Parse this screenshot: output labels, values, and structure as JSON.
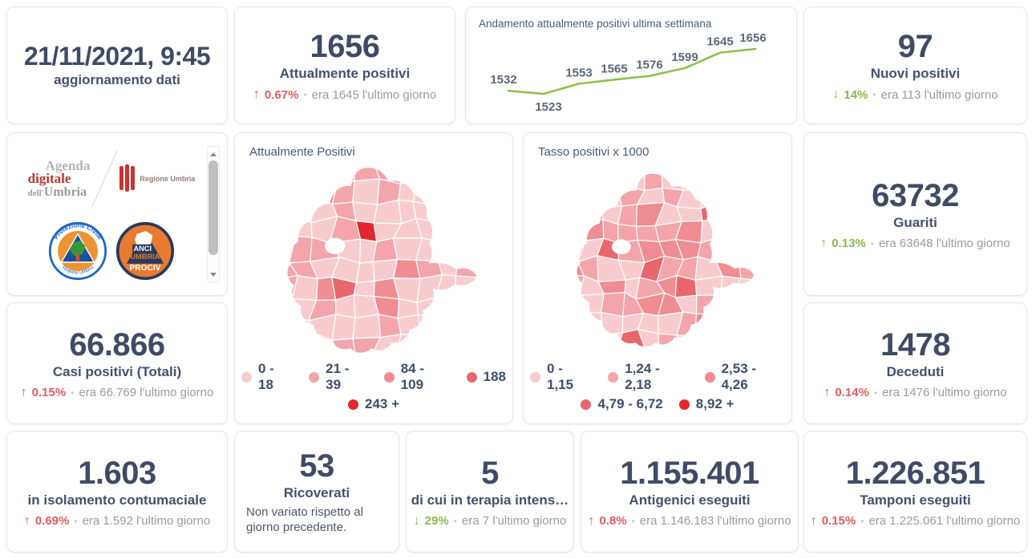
{
  "ui": {
    "separator": "•"
  },
  "colors": {
    "number": "#3f4b66",
    "label": "#44516b",
    "muted_text": "#9b9b9b",
    "trend_red": "#e25c5c",
    "trend_green": "#86bb4a",
    "chart_line": "#8bc34a",
    "card_border": "#e5e5e8"
  },
  "cards": {
    "updated": {
      "value": "21/11/2021, 9:45",
      "label": "aggiornamento dati"
    },
    "attualmente_positivi": {
      "value": "1656",
      "label": "Attualmente positivi",
      "arrow": "↑",
      "delta": "0.67%",
      "trend": "red",
      "prev": "era 1645 l'ultimo giorno"
    },
    "nuovi_positivi": {
      "value": "97",
      "label": "Nuovi positivi",
      "arrow": "↓",
      "delta": "14%",
      "trend": "green",
      "prev": "era 113 l'ultimo giorno"
    },
    "guariti": {
      "value": "63732",
      "label": "Guariti",
      "arrow": "↑",
      "delta": "0.13%",
      "trend": "green",
      "prev": "era 63648 l'ultimo giorno"
    },
    "casi_totali": {
      "value": "66.866",
      "label": "Casi positivi (Totali)",
      "arrow": "↑",
      "delta": "0.15%",
      "trend": "red",
      "prev": "era 66.769 l'ultimo giorno"
    },
    "deceduti": {
      "value": "1478",
      "label": "Deceduti",
      "arrow": "↑",
      "delta": "0.14%",
      "trend": "red",
      "prev": "era 1476 l'ultimo giorno"
    },
    "isolamento": {
      "value": "1.603",
      "label": "in isolamento contumaciale",
      "arrow": "↑",
      "delta": "0.69%",
      "trend": "red",
      "prev": "era 1.592 l'ultimo giorno"
    },
    "ricoverati": {
      "value": "53",
      "label": "Ricoverati",
      "note": "Non variato rispetto al giorno precedente."
    },
    "terapia_intensiva": {
      "value": "5",
      "label": "di cui in terapia intens…",
      "arrow": "↓",
      "delta": "29%",
      "trend": "green",
      "prev": "era 7 l'ultimo giorno"
    },
    "antigenici": {
      "value": "1.155.401",
      "label": "Antigenici eseguiti",
      "arrow": "↑",
      "delta": "0.8%",
      "trend": "red",
      "prev": "era 1.146.183 l'ultimo giorno"
    },
    "tamponi": {
      "value": "1.226.851",
      "label": "Tamponi eseguiti",
      "arrow": "↑",
      "delta": "0.15%",
      "trend": "red",
      "prev": "era 1.225.061 l'ultimo giorno"
    }
  },
  "chart_data": {
    "type": "line",
    "title": "Andamento attualmente positivi ultima settimana",
    "x": [
      1,
      2,
      3,
      4,
      5,
      6,
      7,
      8
    ],
    "values": [
      1532,
      1523,
      1553,
      1565,
      1576,
      1599,
      1645,
      1656
    ],
    "data_labels": true,
    "axes": "hidden",
    "grid": false,
    "legend_position": "none",
    "line_color": "#8bc34a",
    "label_color": "#5d6775"
  },
  "maps": [
    {
      "title": "Attualmente Positivi",
      "legend": [
        {
          "label": "0 - 18",
          "color": "#f8cccf"
        },
        {
          "label": "21 - 39",
          "color": "#f3a5a9"
        },
        {
          "label": "84 - 109",
          "color": "#ef8d92"
        },
        {
          "label": "188",
          "color": "#ea666d"
        },
        {
          "label": "243 +",
          "color": "#e3262e"
        }
      ]
    },
    {
      "title": "Tasso positivi x 1000",
      "legend": [
        {
          "label": "0 - 1,15",
          "color": "#f8cccf"
        },
        {
          "label": "1,24 - 2,18",
          "color": "#f3a5a9"
        },
        {
          "label": "2,53 - 4,26",
          "color": "#ef8d92"
        },
        {
          "label": "4,79 - 6,72",
          "color": "#ea666d"
        },
        {
          "label": "8,92 +",
          "color": "#e3262e"
        }
      ]
    }
  ],
  "logos": {
    "agenda": {
      "word1": "Agenda",
      "word2": "digitale",
      "word3_prefix": "dell'",
      "word3": "Umbria"
    },
    "regione_umbria": {
      "label": "Regione Umbria"
    },
    "protezione_civile": {
      "arc_top": "Protezione Civile",
      "arc_bottom": "Regione Umbria"
    },
    "anci": {
      "line1": "ANCI",
      "line2": "UMBRIA",
      "line3": "PROCIV"
    }
  }
}
